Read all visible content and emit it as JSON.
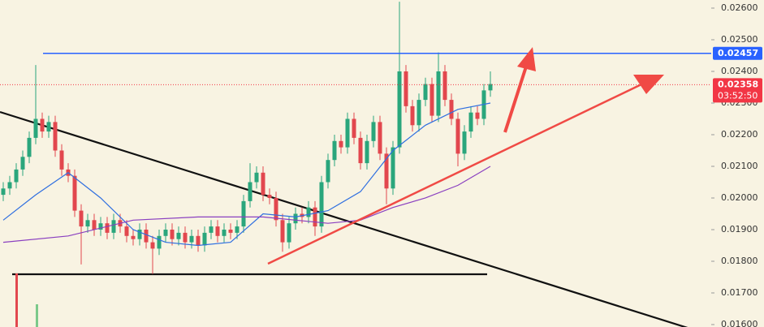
{
  "chart_data": {
    "type": "candlestick",
    "ylim": [
      0.015923,
      0.026256
    ],
    "yticks": [
      {
        "value": 0.016,
        "label": "0.01600"
      },
      {
        "value": 0.017,
        "label": "0.01700"
      },
      {
        "value": 0.018,
        "label": "0.01800"
      },
      {
        "value": 0.019,
        "label": "0.01900"
      },
      {
        "value": 0.02,
        "label": "0.02000"
      },
      {
        "value": 0.021,
        "label": "0.02100"
      },
      {
        "value": 0.022,
        "label": "0.02200"
      },
      {
        "value": 0.023,
        "label": "0.02300"
      },
      {
        "value": 0.024,
        "label": "0.02400"
      },
      {
        "value": 0.025,
        "label": "0.02500"
      },
      {
        "value": 0.026,
        "label": "0.02600"
      }
    ],
    "up_color": "#2aa67c",
    "down_color": "#e2474e",
    "open": [
      0.0201,
      0.0203,
      0.0205,
      0.0209,
      0.0213,
      0.0219,
      0.0225,
      0.0221,
      0.0224,
      0.0215,
      0.0209,
      0.0207,
      0.0196,
      0.0191,
      0.0193,
      0.019,
      0.0192,
      0.0189,
      0.0193,
      0.0191,
      0.0188,
      0.0187,
      0.019,
      0.0186,
      0.0184,
      0.0188,
      0.019,
      0.0187,
      0.0189,
      0.0186,
      0.0188,
      0.0185,
      0.0189,
      0.0191,
      0.0188,
      0.019,
      0.0189,
      0.0191,
      0.0199,
      0.0205,
      0.0208,
      0.0201,
      0.02,
      0.0193,
      0.0186,
      0.0192,
      0.0195,
      0.0194,
      0.0197,
      0.0191,
      0.0205,
      0.0212,
      0.0218,
      0.0216,
      0.0225,
      0.0219,
      0.0211,
      0.0218,
      0.0224,
      0.0214,
      0.0203,
      0.0216,
      0.024,
      0.0229,
      0.0223,
      0.0231,
      0.0236,
      0.0226,
      0.024,
      0.0231,
      0.0225,
      0.0214,
      0.0221,
      0.0227,
      0.0225,
      0.0234
    ],
    "high": [
      0.0205,
      0.0207,
      0.0211,
      0.0215,
      0.0221,
      0.0242,
      0.0227,
      0.0226,
      0.0226,
      0.0217,
      0.0211,
      0.0209,
      0.0198,
      0.0195,
      0.0195,
      0.0194,
      0.0194,
      0.0195,
      0.0195,
      0.0193,
      0.019,
      0.0192,
      0.0192,
      0.0188,
      0.019,
      0.0192,
      0.0192,
      0.0191,
      0.0191,
      0.019,
      0.019,
      0.0191,
      0.0193,
      0.0193,
      0.0192,
      0.0192,
      0.0193,
      0.0201,
      0.0211,
      0.021,
      0.021,
      0.0203,
      0.0202,
      0.0195,
      0.0194,
      0.0197,
      0.0197,
      0.0199,
      0.0199,
      0.0207,
      0.0214,
      0.022,
      0.022,
      0.0227,
      0.0227,
      0.0221,
      0.022,
      0.0226,
      0.0226,
      0.0216,
      0.0218,
      0.0262,
      0.0242,
      0.0231,
      0.0233,
      0.0238,
      0.0238,
      0.0246,
      0.0242,
      0.0233,
      0.0227,
      0.0223,
      0.0229,
      0.0229,
      0.0236,
      0.024
    ],
    "low": [
      0.0199,
      0.0201,
      0.0203,
      0.0207,
      0.0211,
      0.0217,
      0.0219,
      0.0219,
      0.0213,
      0.0207,
      0.0205,
      0.0194,
      0.0179,
      0.0189,
      0.0188,
      0.0188,
      0.0187,
      0.0187,
      0.0189,
      0.0186,
      0.0185,
      0.0185,
      0.0184,
      0.0176,
      0.0182,
      0.0186,
      0.0185,
      0.0185,
      0.0184,
      0.0184,
      0.0183,
      0.0183,
      0.0187,
      0.0186,
      0.0186,
      0.0187,
      0.0187,
      0.0189,
      0.0197,
      0.0203,
      0.0199,
      0.0198,
      0.0191,
      0.0183,
      0.0184,
      0.019,
      0.0192,
      0.0192,
      0.0188,
      0.0189,
      0.0203,
      0.021,
      0.0214,
      0.0214,
      0.0217,
      0.0209,
      0.0209,
      0.0216,
      0.0212,
      0.0198,
      0.0201,
      0.0214,
      0.0227,
      0.0221,
      0.0221,
      0.0229,
      0.0224,
      0.0224,
      0.0229,
      0.0223,
      0.021,
      0.0212,
      0.0219,
      0.0223,
      0.0223,
      0.0232
    ],
    "close": [
      0.0203,
      0.0205,
      0.0209,
      0.0213,
      0.0219,
      0.0225,
      0.0221,
      0.0224,
      0.0215,
      0.0209,
      0.0207,
      0.0196,
      0.0191,
      0.0193,
      0.019,
      0.0192,
      0.0189,
      0.0193,
      0.0191,
      0.0188,
      0.0187,
      0.019,
      0.0186,
      0.0184,
      0.0188,
      0.019,
      0.0187,
      0.0189,
      0.0186,
      0.0188,
      0.0185,
      0.0189,
      0.0191,
      0.0188,
      0.019,
      0.0189,
      0.0191,
      0.0199,
      0.0205,
      0.0208,
      0.0201,
      0.02,
      0.0193,
      0.0186,
      0.0192,
      0.0195,
      0.0194,
      0.0197,
      0.0191,
      0.0205,
      0.0212,
      0.0218,
      0.0216,
      0.0225,
      0.0219,
      0.0211,
      0.0218,
      0.0224,
      0.0214,
      0.0203,
      0.0216,
      0.024,
      0.0229,
      0.0223,
      0.0231,
      0.0236,
      0.0226,
      0.024,
      0.0231,
      0.0225,
      0.0214,
      0.0221,
      0.0227,
      0.0225,
      0.0234,
      0.0236
    ],
    "moving_averages": [
      {
        "color": "#2f6fe0",
        "at": [
          0,
          5,
          10,
          15,
          20,
          25,
          30,
          35,
          40,
          45,
          50,
          55,
          60,
          65,
          70,
          75
        ],
        "values": [
          0.0193,
          0.0201,
          0.0208,
          0.02,
          0.019,
          0.0186,
          0.0185,
          0.0186,
          0.0195,
          0.0194,
          0.0196,
          0.0202,
          0.0215,
          0.0223,
          0.0228,
          0.023
        ]
      },
      {
        "color": "#8a3fc0",
        "at": [
          0,
          10,
          20,
          30,
          40,
          50,
          55,
          60,
          65,
          70,
          75
        ],
        "values": [
          0.0186,
          0.0188,
          0.0193,
          0.0194,
          0.0194,
          0.0192,
          0.0193,
          0.0197,
          0.02,
          0.0204,
          0.021
        ]
      }
    ],
    "price_lines": [
      {
        "value": 0.02457,
        "label": "0.02457",
        "color": "#2962ff"
      },
      {
        "value": 0.02358,
        "label": "0.02358",
        "color": "#f23645",
        "countdown": "03:52:50"
      }
    ]
  }
}
